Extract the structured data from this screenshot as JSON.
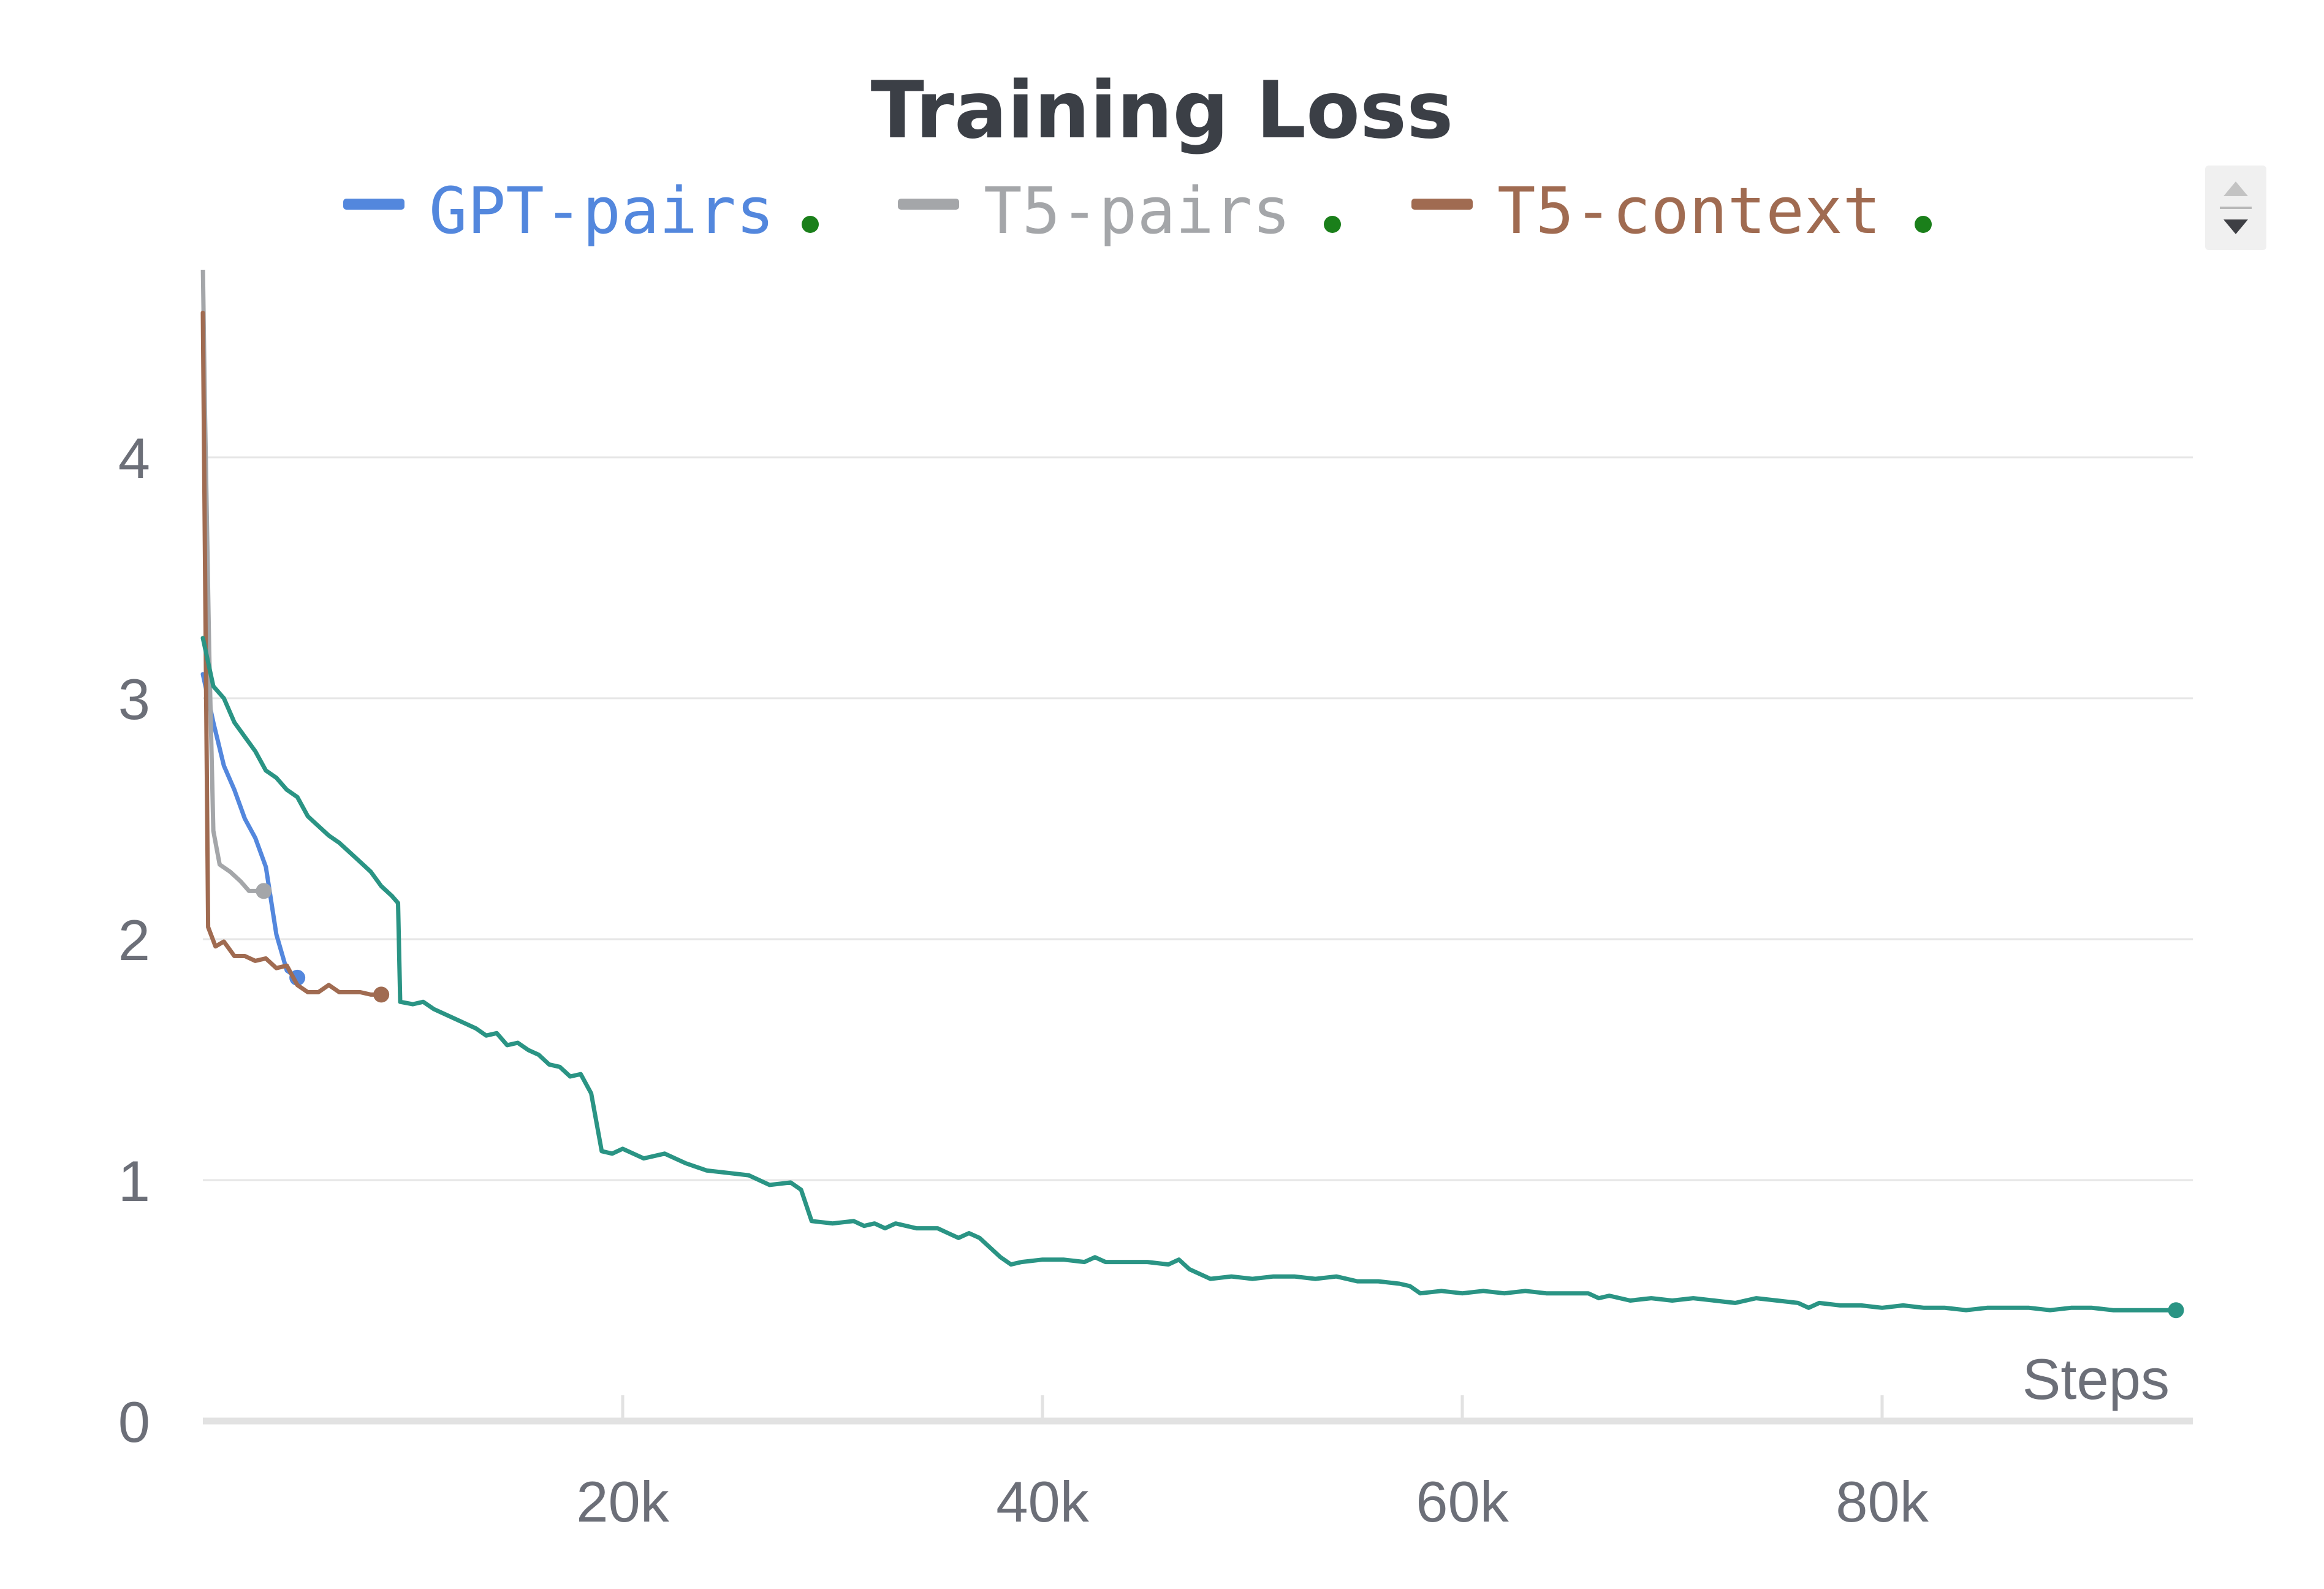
{
  "chart_data": {
    "type": "line",
    "title": "Training Loss",
    "xlabel": "Steps",
    "ylabel": "",
    "xlim": [
      0,
      94000
    ],
    "ylim": [
      0,
      4.7
    ],
    "x_ticks": [
      20000,
      40000,
      60000,
      80000
    ],
    "x_tick_labels": [
      "20k",
      "40k",
      "60k",
      "80k"
    ],
    "y_ticks": [
      0,
      1,
      2,
      3,
      4
    ],
    "y_tick_labels": [
      "0",
      "1",
      "2",
      "3",
      "4"
    ],
    "grid": true,
    "legend_position": "top",
    "series": [
      {
        "name": "GPT-pairs",
        "color": "#5387dd",
        "in_legend": true,
        "x": [
          0,
          500,
          1000,
          1500,
          2000,
          2500,
          3000,
          3500,
          4000,
          4500
        ],
        "y": [
          3.1,
          2.9,
          2.72,
          2.62,
          2.5,
          2.42,
          2.3,
          2.02,
          1.87,
          1.84
        ]
      },
      {
        "name": "T5-pairs",
        "color": "#a4a6a9",
        "in_legend": true,
        "x": [
          0,
          100,
          300,
          500,
          800,
          1300,
          1800,
          2200,
          2900
        ],
        "y": [
          4.8,
          4.2,
          3.2,
          2.45,
          2.31,
          2.28,
          2.24,
          2.2,
          2.2
        ]
      },
      {
        "name": "T5-context",
        "color": "#a06b51",
        "in_legend": true,
        "x": [
          0,
          250,
          600,
          1000,
          1500,
          2000,
          2500,
          3000,
          3500,
          4000,
          4500,
          5000,
          5500,
          6000,
          6500,
          7000,
          7500,
          8000,
          8500
        ],
        "y": [
          4.6,
          2.05,
          1.97,
          1.99,
          1.93,
          1.93,
          1.91,
          1.92,
          1.88,
          1.89,
          1.81,
          1.78,
          1.78,
          1.81,
          1.78,
          1.78,
          1.78,
          1.77,
          1.77
        ],
        "end_marker": true
      },
      {
        "name": "",
        "color": "#2a9484",
        "in_legend": false,
        "x": [
          0,
          500,
          1000,
          1500,
          2000,
          2500,
          3000,
          3500,
          4000,
          4500,
          5000,
          5500,
          6000,
          6500,
          7000,
          7500,
          8000,
          8500,
          9000,
          9300,
          9400,
          10000,
          10500,
          11000,
          12000,
          13000,
          13500,
          14000,
          14500,
          15000,
          15500,
          16000,
          16500,
          17000,
          17500,
          18000,
          18500,
          19000,
          19500,
          20000,
          21000,
          22000,
          23000,
          24000,
          25000,
          26000,
          27000,
          28000,
          28500,
          29000,
          30000,
          31000,
          31500,
          32000,
          32500,
          33000,
          34000,
          35000,
          35500,
          36000,
          36500,
          37000,
          38000,
          38500,
          39000,
          40000,
          41000,
          42000,
          42500,
          43000,
          44000,
          45000,
          46000,
          46500,
          47000,
          48000,
          49000,
          50000,
          51000,
          52000,
          53000,
          54000,
          55000,
          56000,
          57000,
          57500,
          58000,
          59000,
          60000,
          61000,
          62000,
          63000,
          64000,
          65000,
          66000,
          66500,
          67000,
          68000,
          69000,
          70000,
          71000,
          72000,
          73000,
          74000,
          75000,
          76000,
          76500,
          77000,
          78000,
          79000,
          80000,
          81000,
          82000,
          83000,
          84000,
          85000,
          86000,
          87000,
          88000,
          89000,
          90000,
          91000,
          92000,
          93000,
          94000
        ],
        "y": [
          3.25,
          3.05,
          3.0,
          2.9,
          2.84,
          2.78,
          2.7,
          2.67,
          2.62,
          2.59,
          2.51,
          2.47,
          2.43,
          2.4,
          2.36,
          2.32,
          2.28,
          2.22,
          2.18,
          2.15,
          1.74,
          1.73,
          1.74,
          1.71,
          1.67,
          1.63,
          1.6,
          1.61,
          1.56,
          1.57,
          1.54,
          1.52,
          1.48,
          1.47,
          1.43,
          1.44,
          1.36,
          1.12,
          1.11,
          1.13,
          1.09,
          1.11,
          1.07,
          1.04,
          1.03,
          1.02,
          0.98,
          0.99,
          0.96,
          0.83,
          0.82,
          0.83,
          0.81,
          0.82,
          0.8,
          0.82,
          0.8,
          0.8,
          0.78,
          0.76,
          0.78,
          0.76,
          0.68,
          0.65,
          0.66,
          0.67,
          0.67,
          0.66,
          0.68,
          0.66,
          0.66,
          0.66,
          0.65,
          0.67,
          0.63,
          0.59,
          0.6,
          0.59,
          0.6,
          0.6,
          0.59,
          0.6,
          0.58,
          0.58,
          0.57,
          0.56,
          0.53,
          0.54,
          0.53,
          0.54,
          0.53,
          0.54,
          0.53,
          0.53,
          0.53,
          0.51,
          0.52,
          0.5,
          0.51,
          0.5,
          0.51,
          0.5,
          0.49,
          0.51,
          0.5,
          0.49,
          0.47,
          0.49,
          0.48,
          0.48,
          0.47,
          0.48,
          0.47,
          0.47,
          0.46,
          0.47,
          0.47,
          0.47,
          0.46,
          0.47,
          0.47,
          0.46,
          0.46,
          0.46,
          0.46
        ],
        "end_marker": true
      }
    ]
  }
}
